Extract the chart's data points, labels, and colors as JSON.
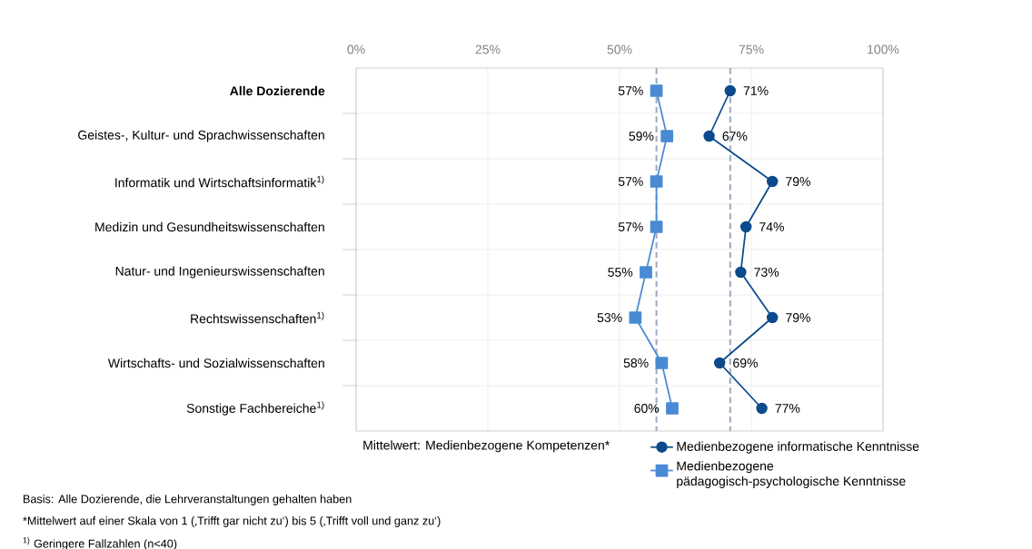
{
  "chart_data": {
    "type": "line",
    "orientation": "horizontal",
    "categories": [
      "**Alle Dozierende**",
      "Geistes-, Kultur- und Sprachwissenschaften",
      "Informatik und Wirtschaftsinformatik$^{1)}$",
      "Medizin und Gesundheitswissenschaften",
      "Natur- und Ingenieurswissenschaften",
      "Rechtswissenschaften$^{1)}$",
      "Wirtschafts- und Sozialwissenschaften",
      "Sonstige Fachbereiche$^{1)}$"
    ],
    "series": [
      {
        "name": "Medienbezogene informatische Kenntnisse",
        "color": "#0b4a8b",
        "marker": "circle",
        "values": [
          71,
          67,
          79,
          74,
          73,
          79,
          69,
          77
        ],
        "value_labels": [
          "71%",
          "67%",
          "79%",
          "74%",
          "73%",
          "79%",
          "69%",
          "77%"
        ]
      },
      {
        "name": "Medienbezogene pädagogisch-psychologische Kenntnisse",
        "color": "#4a8ad4",
        "marker": "square",
        "values": [
          57,
          59,
          57,
          57,
          55,
          53,
          58,
          60
        ],
        "value_labels": [
          "57%",
          "59%",
          "57%",
          "57%",
          "55%",
          "53%",
          "58%",
          "60%"
        ]
      }
    ],
    "xlim": [
      0,
      100
    ],
    "xticks": [
      {
        "value": 0,
        "label": "0%"
      },
      {
        "value": 25,
        "label": "25%"
      },
      {
        "value": 50,
        "label": "50%"
      },
      {
        "value": 75,
        "label": "75%"
      },
      {
        "value": 100,
        "label": "100%"
      }
    ],
    "xlabel": "Mittelwert: Medienbezogene Kompetenzen*",
    "ref_lines": [
      {
        "axis": "x",
        "value": 57,
        "color": "#9aaabf",
        "line_style": "dashed"
      },
      {
        "axis": "x",
        "value": 71,
        "color": "#9aaabf",
        "line_style": "dashed"
      }
    ],
    "grid": true,
    "legend": "bottom",
    "line_style": "solid",
    "annotations": [
      "Basis: Alle Dozierende, die Lehrveranstaltungen gehalten haben",
      "*Mittelwert auf einer Skala von 1 (‚Trifft gar nicht zu‘) bis 5 (‚Trifft voll und ganz zu‘)",
      "$^{1)}$ Geringere Fallzahlen (n<40)"
    ]
  }
}
